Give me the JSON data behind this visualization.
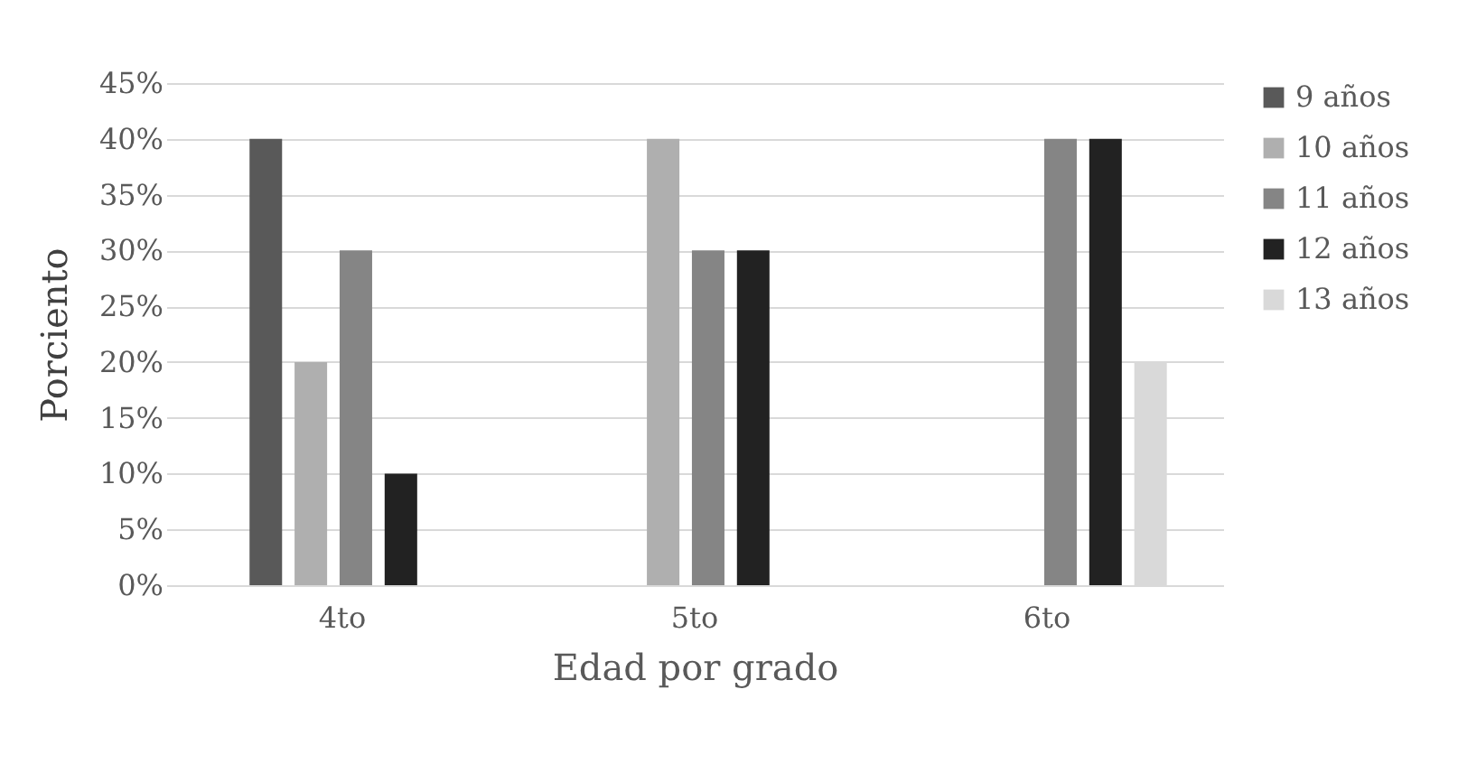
{
  "chart_data": {
    "type": "bar",
    "xlabel": "Edad por grado",
    "ylabel": "Porciento",
    "categories": [
      "4to",
      "5to",
      "6to"
    ],
    "series": [
      {
        "name": "9 años",
        "color": "#595959",
        "values": [
          40,
          null,
          null
        ]
      },
      {
        "name": "10 años",
        "color": "#afafaf",
        "values": [
          20,
          40,
          null
        ]
      },
      {
        "name": "11 años",
        "color": "#858585",
        "values": [
          30,
          30,
          40
        ]
      },
      {
        "name": "12 años",
        "color": "#222222",
        "values": [
          10,
          30,
          40
        ]
      },
      {
        "name": "13 años",
        "color": "#d9d9d9",
        "values": [
          null,
          null,
          20
        ]
      }
    ],
    "ylim": [
      0,
      45
    ],
    "yticks": [
      {
        "value": 0,
        "label": "0%"
      },
      {
        "value": 5,
        "label": "5%"
      },
      {
        "value": 10,
        "label": "10%"
      },
      {
        "value": 15,
        "label": "15%"
      },
      {
        "value": 20,
        "label": "20%"
      },
      {
        "value": 25,
        "label": "25%"
      },
      {
        "value": 30,
        "label": "30%"
      },
      {
        "value": 35,
        "label": "35%"
      },
      {
        "value": 40,
        "label": "40%"
      },
      {
        "value": 45,
        "label": "45%"
      }
    ],
    "grid": "y",
    "legend": "right"
  }
}
